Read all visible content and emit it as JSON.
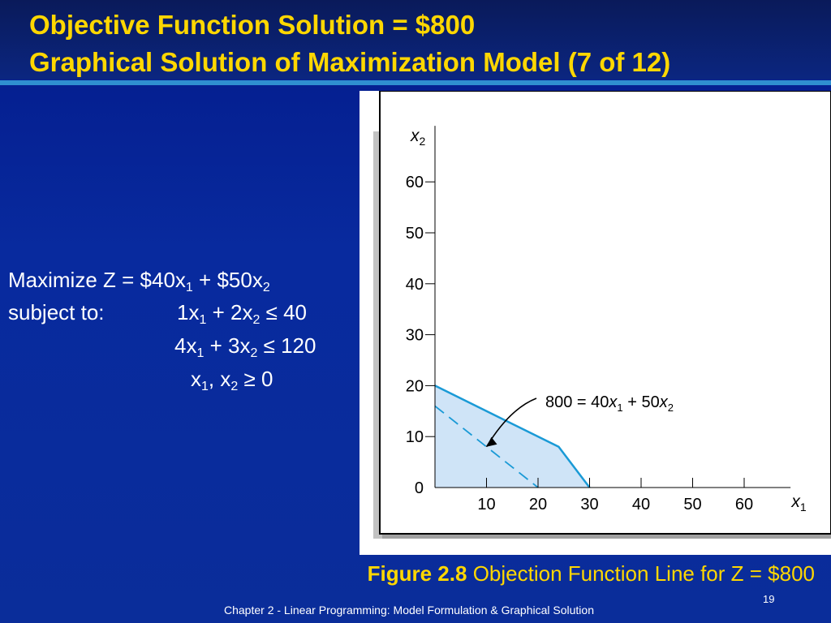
{
  "slide": {
    "title_line1": "Objective Function Solution = $800",
    "title_line2": "Graphical Solution of Maximization Model (7 of 12)"
  },
  "model": {
    "objective_prefix": "Maximize Z = $40x",
    "objective_mid": " + $50x",
    "sub1": "1",
    "sub2": "2",
    "subject_to": "subject to:",
    "c1_a": "1x",
    "c1_b": " + 2x",
    "c1_c": " ≤ 40",
    "c2_a": "4x",
    "c2_b": " + 3x",
    "c2_c": " ≤ 120",
    "c3_a": "x",
    "c3_b": ", x",
    "c3_c": " ≥ 0"
  },
  "figure": {
    "caption_label": "Figure 2.8",
    "caption_text": " Objection Function Line for Z = $800"
  },
  "footer": {
    "text": "Chapter 2 - Linear Programming:  Model Formulation & Graphical Solution",
    "page": "19"
  },
  "chart_data": {
    "type": "line",
    "xlabel": "x1",
    "ylabel": "x2",
    "xlim": [
      0,
      70
    ],
    "ylim": [
      0,
      70
    ],
    "x_ticks": [
      10,
      20,
      30,
      40,
      50,
      60
    ],
    "y_ticks": [
      0,
      10,
      20,
      30,
      40,
      50,
      60
    ],
    "feasible_region": [
      [
        0,
        0
      ],
      [
        0,
        20
      ],
      [
        24,
        8
      ],
      [
        30,
        0
      ]
    ],
    "feasible_color": "#cfe4f7",
    "boundary_color": "#1a9ad6",
    "objective_line": {
      "points": [
        [
          0,
          16
        ],
        [
          20,
          0
        ]
      ],
      "style": "dashed"
    },
    "annotation": {
      "text_parts": [
        "800 = 40",
        "x",
        "1",
        " + 50",
        "x",
        "2"
      ],
      "points_to": [
        10,
        8
      ]
    }
  }
}
